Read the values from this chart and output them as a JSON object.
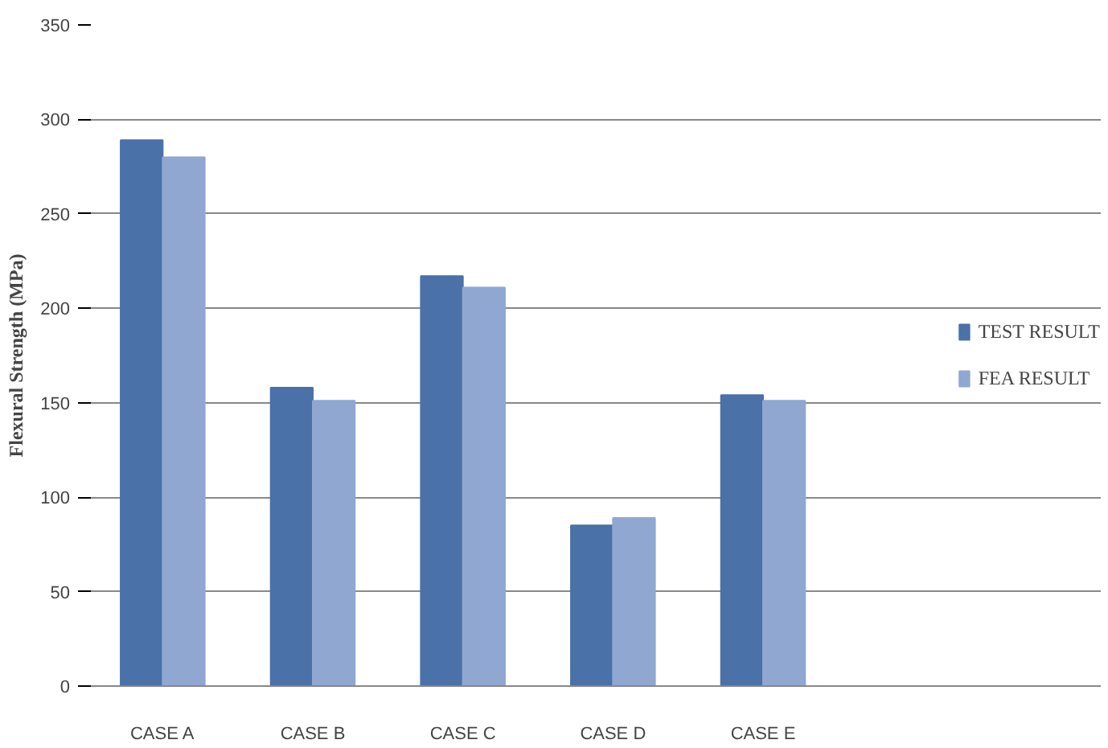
{
  "chart_data": {
    "type": "bar",
    "ylabel": "Flexural Strength (MPa)",
    "categories": [
      "CASE A",
      "CASE B",
      "CASE C",
      "CASE D",
      "CASE E"
    ],
    "series": [
      {
        "name": "TEST RESULT",
        "color": "#4a71a8",
        "values": [
          289,
          158,
          217,
          85,
          154
        ]
      },
      {
        "name": "FEA RESULT",
        "color": "#8fa7d1",
        "values": [
          280,
          151,
          211,
          89,
          151
        ]
      }
    ],
    "ylim": [
      0,
      350
    ],
    "yticks": [
      0,
      50,
      100,
      150,
      200,
      250,
      300,
      350
    ],
    "grid": "y",
    "legend": "right"
  }
}
